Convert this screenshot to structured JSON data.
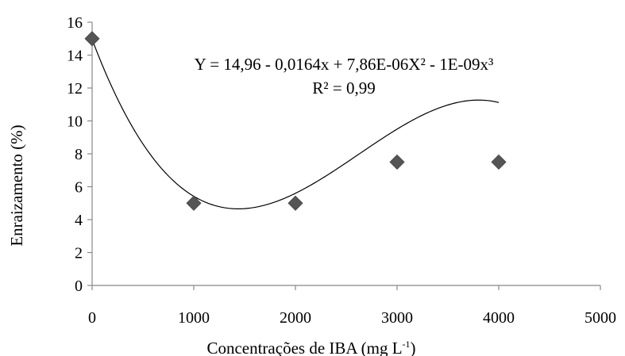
{
  "chart_data": {
    "type": "scatter",
    "title": "",
    "xlabel": "Concentrações de IBA (mg L",
    "xlabel_sup": "-1",
    "xlabel_close": ")",
    "ylabel": "Enraizamento (%)",
    "xlim": [
      0,
      5000
    ],
    "ylim": [
      0,
      16
    ],
    "x_ticks": [
      0,
      1000,
      2000,
      3000,
      4000,
      5000
    ],
    "y_ticks": [
      0,
      2,
      4,
      6,
      8,
      10,
      12,
      14,
      16
    ],
    "grid": false,
    "legend": "none",
    "series": [
      {
        "marker": "diamond",
        "color": "#555555",
        "x": [
          0,
          1000,
          2000,
          3000,
          4000
        ],
        "y": [
          15,
          5,
          5,
          7.5,
          7.5
        ]
      }
    ],
    "trendline": {
      "type": "polynomial",
      "degree": 3,
      "coefficients": [
        14.96,
        -0.0164,
        7.86e-06,
        -1e-09
      ],
      "x_range": [
        0,
        4000
      ],
      "color": "#000000"
    },
    "annotations": {
      "equation": "Y = 14,96 - 0,0164x + 7,86E-06X² - 1E-09x³",
      "r_squared": "R² = 0,99"
    }
  }
}
